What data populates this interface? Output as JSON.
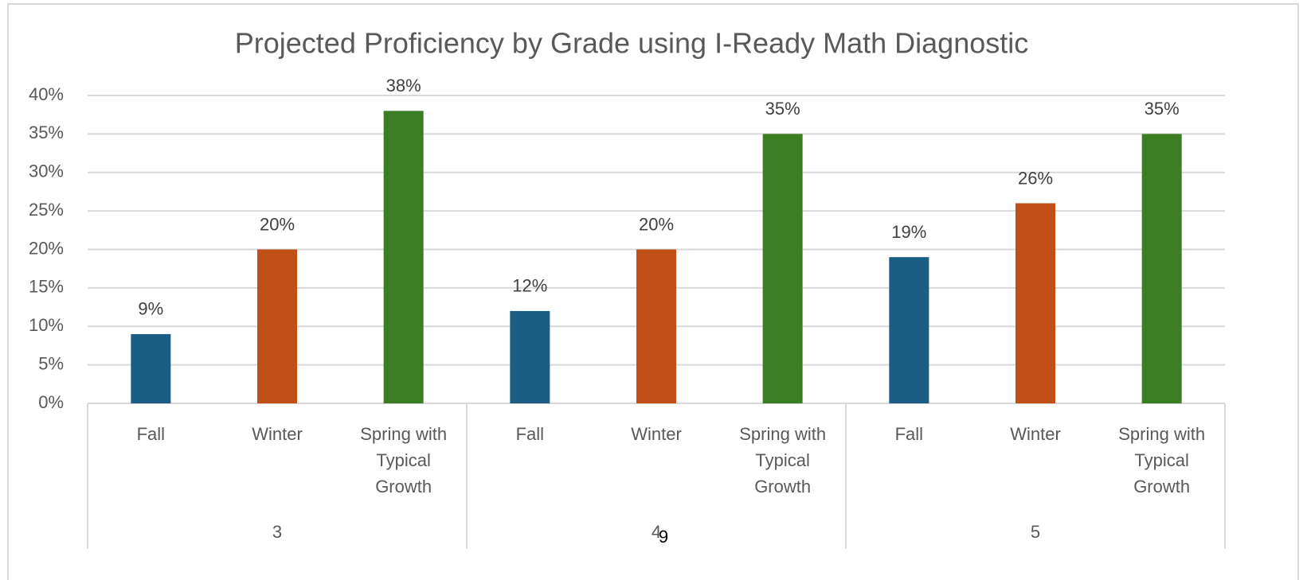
{
  "chart_data": {
    "type": "bar",
    "title": "Projected Proficiency by Grade using I-Ready Math Diagnostic",
    "categories": [
      "3",
      "4",
      "5"
    ],
    "series": [
      {
        "name": "Fall",
        "color": "#1a5e84",
        "values": [
          9,
          12,
          19
        ],
        "value_labels": [
          "9%",
          "12%",
          "19%"
        ]
      },
      {
        "name": "Winter",
        "color": "#c05017",
        "values": [
          20,
          20,
          26
        ],
        "value_labels": [
          "20%",
          "20%",
          "26%"
        ]
      },
      {
        "name": "Spring with Typical Growth",
        "color": "#3b7d23",
        "values": [
          38,
          35,
          35
        ],
        "value_labels": [
          "38%",
          "35%",
          "35%"
        ]
      }
    ],
    "ylim": [
      0,
      40
    ],
    "yticks": [
      {
        "value": 0,
        "label": "0%"
      },
      {
        "value": 5,
        "label": "5%"
      },
      {
        "value": 10,
        "label": "10%"
      },
      {
        "value": 15,
        "label": "15%"
      },
      {
        "value": 20,
        "label": "20%"
      },
      {
        "value": 25,
        "label": "25%"
      },
      {
        "value": 30,
        "label": "30%"
      },
      {
        "value": 35,
        "label": "35%"
      },
      {
        "value": 40,
        "label": "40%"
      }
    ],
    "grid": true,
    "page_number": "9"
  }
}
